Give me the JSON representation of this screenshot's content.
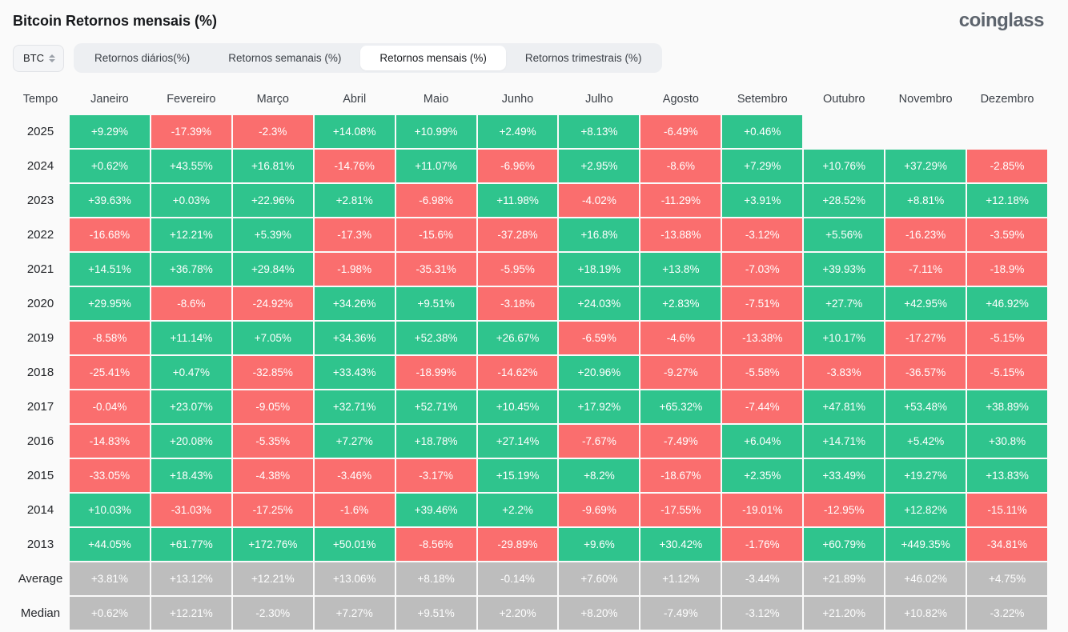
{
  "header": {
    "title": "Bitcoin Retornos mensais (%)",
    "logo_text": "coinglass"
  },
  "controls": {
    "symbol_select": {
      "value": "BTC"
    },
    "tabs": [
      {
        "label": "Retornos diários(%)",
        "active": false
      },
      {
        "label": "Retornos semanais (%)",
        "active": false
      },
      {
        "label": "Retornos mensais (%)",
        "active": true
      },
      {
        "label": "Retornos trimestrais (%)",
        "active": false
      }
    ]
  },
  "colors": {
    "positive": "#2fc48d",
    "negative": "#fa6e6e",
    "neutral": "#bdbdbd"
  },
  "chart_data": {
    "type": "heatmap",
    "title": "Bitcoin Retornos mensais (%)",
    "time_column_label": "Tempo",
    "columns": [
      "Janeiro",
      "Fevereiro",
      "Março",
      "Abril",
      "Maio",
      "Junho",
      "Julho",
      "Agosto",
      "Setembro",
      "Outubro",
      "Novembro",
      "Dezembro"
    ],
    "rows": [
      {
        "label": "2025",
        "summary": false,
        "values": [
          "+9.29%",
          "-17.39%",
          "-2.3%",
          "+14.08%",
          "+10.99%",
          "+2.49%",
          "+8.13%",
          "-6.49%",
          "+0.46%",
          "",
          "",
          ""
        ]
      },
      {
        "label": "2024",
        "summary": false,
        "values": [
          "+0.62%",
          "+43.55%",
          "+16.81%",
          "-14.76%",
          "+11.07%",
          "-6.96%",
          "+2.95%",
          "-8.6%",
          "+7.29%",
          "+10.76%",
          "+37.29%",
          "-2.85%"
        ]
      },
      {
        "label": "2023",
        "summary": false,
        "values": [
          "+39.63%",
          "+0.03%",
          "+22.96%",
          "+2.81%",
          "-6.98%",
          "+11.98%",
          "-4.02%",
          "-11.29%",
          "+3.91%",
          "+28.52%",
          "+8.81%",
          "+12.18%"
        ]
      },
      {
        "label": "2022",
        "summary": false,
        "values": [
          "-16.68%",
          "+12.21%",
          "+5.39%",
          "-17.3%",
          "-15.6%",
          "-37.28%",
          "+16.8%",
          "-13.88%",
          "-3.12%",
          "+5.56%",
          "-16.23%",
          "-3.59%"
        ]
      },
      {
        "label": "2021",
        "summary": false,
        "values": [
          "+14.51%",
          "+36.78%",
          "+29.84%",
          "-1.98%",
          "-35.31%",
          "-5.95%",
          "+18.19%",
          "+13.8%",
          "-7.03%",
          "+39.93%",
          "-7.11%",
          "-18.9%"
        ]
      },
      {
        "label": "2020",
        "summary": false,
        "values": [
          "+29.95%",
          "-8.6%",
          "-24.92%",
          "+34.26%",
          "+9.51%",
          "-3.18%",
          "+24.03%",
          "+2.83%",
          "-7.51%",
          "+27.7%",
          "+42.95%",
          "+46.92%"
        ]
      },
      {
        "label": "2019",
        "summary": false,
        "values": [
          "-8.58%",
          "+11.14%",
          "+7.05%",
          "+34.36%",
          "+52.38%",
          "+26.67%",
          "-6.59%",
          "-4.6%",
          "-13.38%",
          "+10.17%",
          "-17.27%",
          "-5.15%"
        ]
      },
      {
        "label": "2018",
        "summary": false,
        "values": [
          "-25.41%",
          "+0.47%",
          "-32.85%",
          "+33.43%",
          "-18.99%",
          "-14.62%",
          "+20.96%",
          "-9.27%",
          "-5.58%",
          "-3.83%",
          "-36.57%",
          "-5.15%"
        ]
      },
      {
        "label": "2017",
        "summary": false,
        "values": [
          "-0.04%",
          "+23.07%",
          "-9.05%",
          "+32.71%",
          "+52.71%",
          "+10.45%",
          "+17.92%",
          "+65.32%",
          "-7.44%",
          "+47.81%",
          "+53.48%",
          "+38.89%"
        ]
      },
      {
        "label": "2016",
        "summary": false,
        "values": [
          "-14.83%",
          "+20.08%",
          "-5.35%",
          "+7.27%",
          "+18.78%",
          "+27.14%",
          "-7.67%",
          "-7.49%",
          "+6.04%",
          "+14.71%",
          "+5.42%",
          "+30.8%"
        ]
      },
      {
        "label": "2015",
        "summary": false,
        "values": [
          "-33.05%",
          "+18.43%",
          "-4.38%",
          "-3.46%",
          "-3.17%",
          "+15.19%",
          "+8.2%",
          "-18.67%",
          "+2.35%",
          "+33.49%",
          "+19.27%",
          "+13.83%"
        ]
      },
      {
        "label": "2014",
        "summary": false,
        "values": [
          "+10.03%",
          "-31.03%",
          "-17.25%",
          "-1.6%",
          "+39.46%",
          "+2.2%",
          "-9.69%",
          "-17.55%",
          "-19.01%",
          "-12.95%",
          "+12.82%",
          "-15.11%"
        ]
      },
      {
        "label": "2013",
        "summary": false,
        "values": [
          "+44.05%",
          "+61.77%",
          "+172.76%",
          "+50.01%",
          "-8.56%",
          "-29.89%",
          "+9.6%",
          "+30.42%",
          "-1.76%",
          "+60.79%",
          "+449.35%",
          "-34.81%"
        ]
      },
      {
        "label": "Average",
        "summary": true,
        "values": [
          "+3.81%",
          "+13.12%",
          "+12.21%",
          "+13.06%",
          "+8.18%",
          "-0.14%",
          "+7.60%",
          "+1.12%",
          "-3.44%",
          "+21.89%",
          "+46.02%",
          "+4.75%"
        ]
      },
      {
        "label": "Median",
        "summary": true,
        "values": [
          "+0.62%",
          "+12.21%",
          "-2.30%",
          "+7.27%",
          "+9.51%",
          "+2.20%",
          "+8.20%",
          "-7.49%",
          "-3.12%",
          "+21.20%",
          "+10.82%",
          "-3.22%"
        ]
      }
    ]
  }
}
